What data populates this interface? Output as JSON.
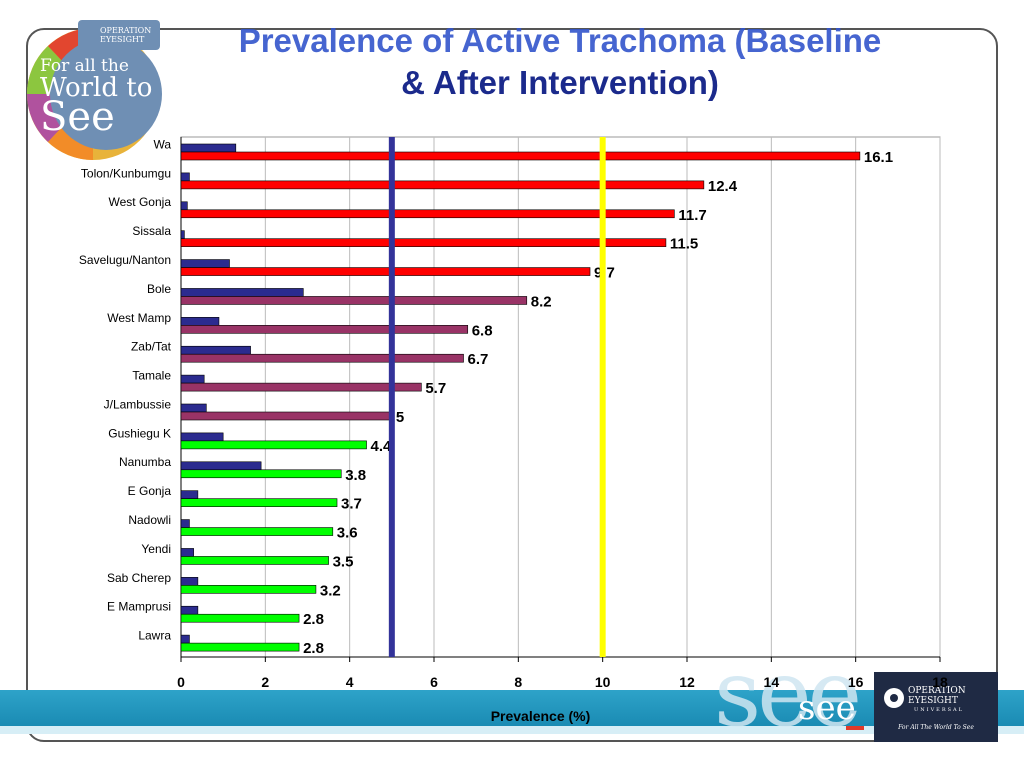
{
  "header": {
    "title_line1": "Prevalence of Active Trachoma (Baseline",
    "title_line2": "& After Intervention)"
  },
  "logo": {
    "badge_line1": "OPERATION",
    "badge_line2": "EYESIGHT",
    "text_line1": "For all the",
    "text_line2": "World to",
    "text_line3": "See"
  },
  "footer": {
    "see_text": "see",
    "org_line1": "OPERATION",
    "org_line2": "EYESIGHT",
    "org_line3": "UNIVERSAL",
    "tagline": "For All The World To See"
  },
  "chart_data": {
    "type": "bar",
    "orientation": "horizontal",
    "title": "Prevalence of Active Trachoma (Baseline & After Intervention)",
    "xlabel": "Prevalence (%)",
    "xlim": [
      0,
      18
    ],
    "xticks": [
      0,
      2,
      4,
      6,
      8,
      10,
      12,
      14,
      16,
      18
    ],
    "grid": true,
    "categories": [
      "Wa",
      "Tolon/Kunbumgu",
      "West Gonja",
      "Sissala",
      "Savelugu/Nanton",
      "Bole",
      "West Mamp",
      "Zab/Tat",
      "Tamale",
      "J/Lambussie",
      "Gushiegu K",
      "Nanumba",
      "E Gonja",
      "Nadowli",
      "Yendi",
      "Sab Cherep",
      "E Mamprusi",
      "Lawra"
    ],
    "series": [
      {
        "color": "#2b2b8f",
        "values": [
          1.3,
          0.2,
          0.15,
          0.08,
          1.15,
          2.9,
          0.9,
          1.65,
          0.55,
          0.6,
          1.0,
          1.9,
          0.4,
          0.2,
          0.3,
          0.4,
          0.4,
          0.2
        ]
      },
      {
        "values": [
          16.1,
          12.4,
          11.7,
          11.5,
          9.7,
          8.2,
          6.8,
          6.7,
          5.7,
          5,
          4.4,
          3.8,
          3.7,
          3.6,
          3.5,
          3.2,
          2.8,
          2.8
        ],
        "data_labels": [
          "16.1",
          "12.4",
          "11.7",
          "11.5",
          "9.7",
          "8.2",
          "6.8",
          "6.7",
          "5.7",
          "5",
          "4.4",
          "3.8",
          "3.7",
          "3.6",
          "3.5",
          "3.2",
          "2.8",
          "2.8"
        ],
        "colors": [
          "#ff0000",
          "#ff0000",
          "#ff0000",
          "#ff0000",
          "#ff0000",
          "#993366",
          "#993366",
          "#993366",
          "#993366",
          "#993366",
          "#00ff00",
          "#00ff00",
          "#00ff00",
          "#00ff00",
          "#00ff00",
          "#00ff00",
          "#00ff00",
          "#00ff00"
        ]
      }
    ],
    "reference_lines": [
      {
        "x": 5,
        "color": "#33339a"
      },
      {
        "x": 10,
        "color": "#ffff00"
      }
    ]
  }
}
